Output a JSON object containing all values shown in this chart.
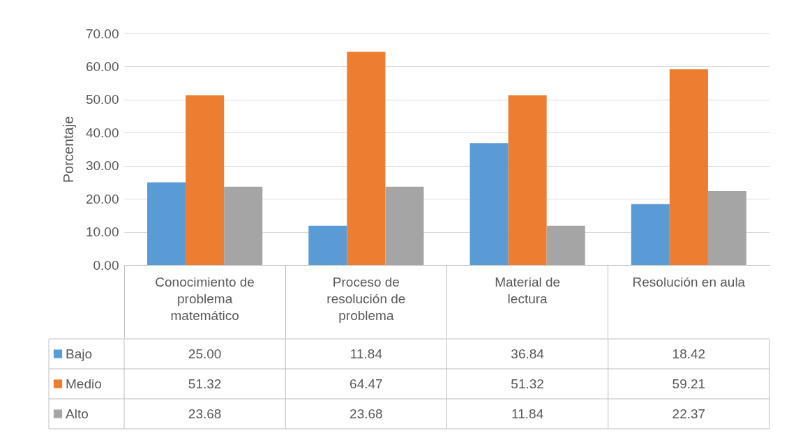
{
  "chart_data": {
    "type": "bar",
    "ylabel": "Porcentaje",
    "categories": [
      "Conocimiento de problema matemático",
      "Proceso de resolución de problema",
      "Material de lectura",
      "Resolución en aula"
    ],
    "series": [
      {
        "name": "Bajo",
        "color": "#5b9bd5",
        "values": [
          25.0,
          11.84,
          36.84,
          18.42
        ],
        "value_labels": [
          "25.00",
          "11.84",
          "36.84",
          "18.42"
        ]
      },
      {
        "name": "Medio",
        "color": "#ed7d31",
        "values": [
          51.32,
          64.47,
          51.32,
          59.21
        ],
        "value_labels": [
          "51.32",
          "64.47",
          "51.32",
          "59.21"
        ]
      },
      {
        "name": "Alto",
        "color": "#a5a5a5",
        "values": [
          23.68,
          23.68,
          11.84,
          22.37
        ],
        "value_labels": [
          "23.68",
          "23.68",
          "11.84",
          "22.37"
        ]
      }
    ],
    "ylim": [
      0,
      70
    ],
    "yticks": [
      {
        "value": 0,
        "label": "0.00"
      },
      {
        "value": 10,
        "label": "10.00"
      },
      {
        "value": 20,
        "label": "20.00"
      },
      {
        "value": 30,
        "label": "30.00"
      },
      {
        "value": 40,
        "label": "40.00"
      },
      {
        "value": 50,
        "label": "50.00"
      },
      {
        "value": 60,
        "label": "60.00"
      },
      {
        "value": 70,
        "label": "70.00"
      }
    ],
    "grid": "y",
    "legend": "bottom"
  }
}
